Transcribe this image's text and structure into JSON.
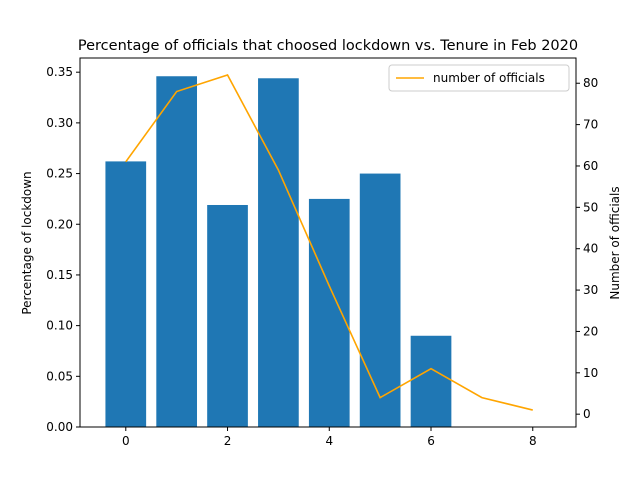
{
  "chart_data": {
    "type": "bar",
    "title": "Percentage of officials that choosed lockdown vs. Tenure in Feb 2020",
    "xlabel": "",
    "ylabel": "Percentage of lockdown",
    "y2label": "Number of officials",
    "xlim": [
      -0.9,
      8.85
    ],
    "ylim": [
      0,
      0.364
    ],
    "y2lim": [
      -3.1,
      86.1
    ],
    "x_ticks": [
      0,
      2,
      4,
      6,
      8
    ],
    "y_ticks": [
      0.0,
      0.05,
      0.1,
      0.15,
      0.2,
      0.25,
      0.3,
      0.35
    ],
    "y2_ticks": [
      0,
      10,
      20,
      30,
      40,
      50,
      60,
      70,
      80
    ],
    "bars": {
      "x": [
        0,
        1,
        2,
        3,
        4,
        5,
        6
      ],
      "values": [
        0.262,
        0.346,
        0.219,
        0.344,
        0.225,
        0.25,
        0.09
      ],
      "color": "#1f77b4"
    },
    "line": {
      "name": "number of officials",
      "x": [
        0,
        1,
        2,
        3,
        4,
        5,
        6,
        7,
        8
      ],
      "values": [
        61,
        78,
        82,
        59,
        31,
        4,
        11,
        4,
        1
      ],
      "color": "#ffa500"
    },
    "legend_position": "top-right",
    "grid": false
  }
}
